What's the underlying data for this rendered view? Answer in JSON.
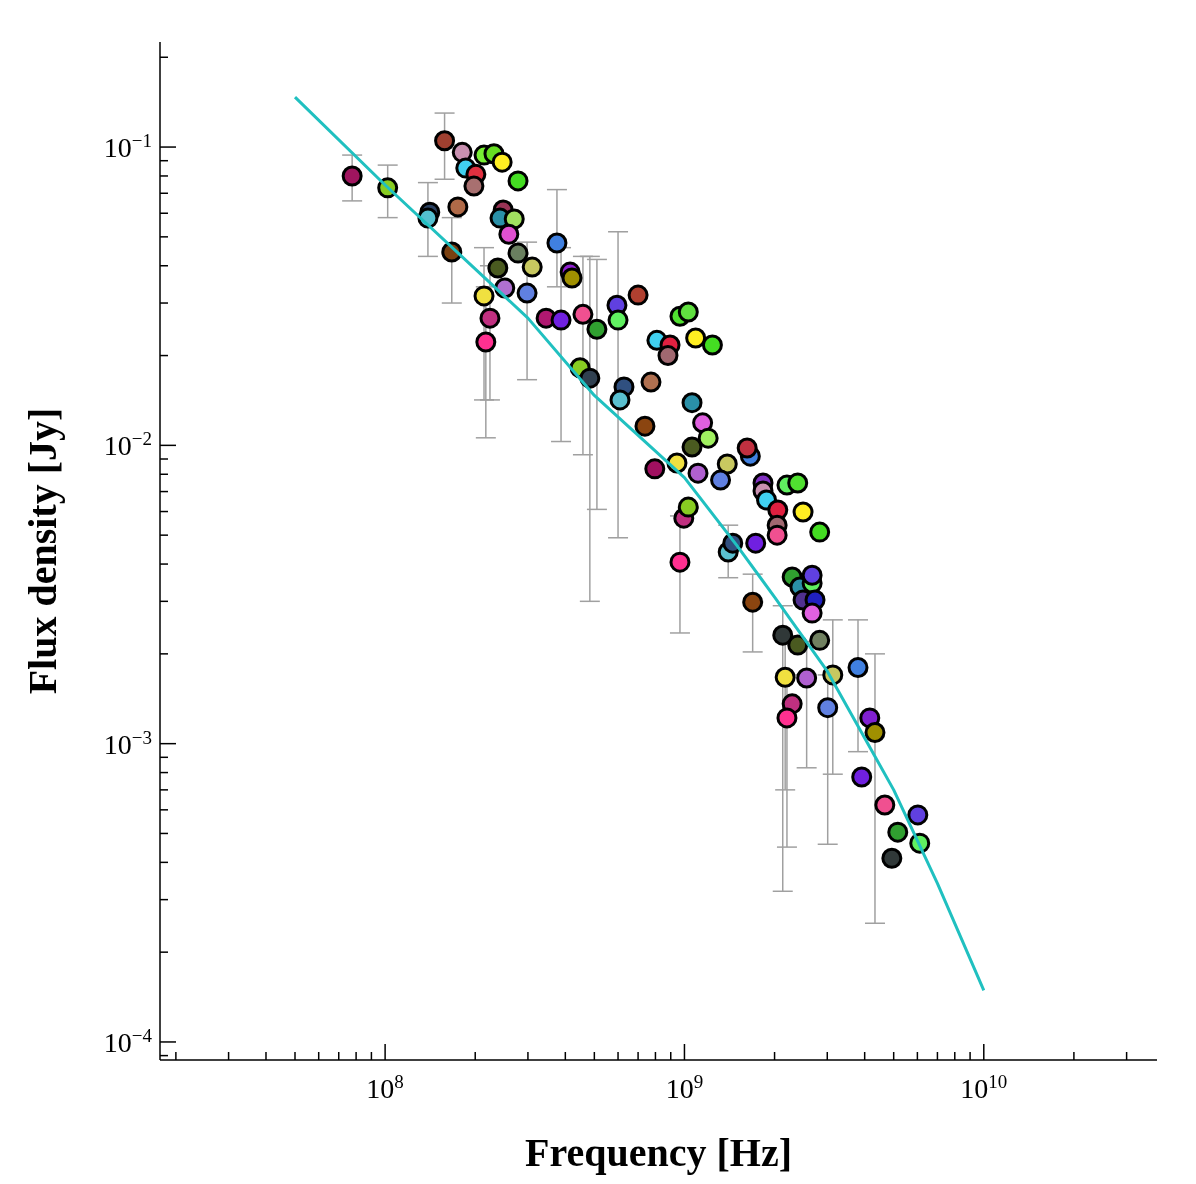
{
  "chart_data": {
    "type": "scatter",
    "xlabel": "Frequency [Hz]",
    "ylabel": "Flux density [Jy]",
    "log": "xy",
    "grid": false,
    "xlim": [
      17700000.0,
      37900000000.0
    ],
    "ylim": [
      8.7e-05,
      0.225
    ],
    "xticks": [
      {
        "value": 20000000.0,
        "label": null
      },
      {
        "value": 30000000.0,
        "label": null
      },
      {
        "value": 40000000.0,
        "label": null
      },
      {
        "value": 50000000.0,
        "label": null
      },
      {
        "value": 60000000.0,
        "label": null
      },
      {
        "value": 70000000.0,
        "label": null
      },
      {
        "value": 80000000.0,
        "label": null
      },
      {
        "value": 90000000.0,
        "label": null
      },
      {
        "value": 100000000.0,
        "label": "10$^{8}$"
      },
      {
        "value": 200000000.0,
        "label": null
      },
      {
        "value": 300000000.0,
        "label": null
      },
      {
        "value": 400000000.0,
        "label": null
      },
      {
        "value": 500000000.0,
        "label": null
      },
      {
        "value": 600000000.0,
        "label": null
      },
      {
        "value": 700000000.0,
        "label": null
      },
      {
        "value": 800000000.0,
        "label": null
      },
      {
        "value": 900000000.0,
        "label": null
      },
      {
        "value": 1000000000.0,
        "label": "10$^{9}$"
      },
      {
        "value": 2000000000.0,
        "label": null
      },
      {
        "value": 3000000000.0,
        "label": null
      },
      {
        "value": 4000000000.0,
        "label": null
      },
      {
        "value": 5000000000.0,
        "label": null
      },
      {
        "value": 6000000000.0,
        "label": null
      },
      {
        "value": 7000000000.0,
        "label": null
      },
      {
        "value": 8000000000.0,
        "label": null
      },
      {
        "value": 9000000000.0,
        "label": null
      },
      {
        "value": 10000000000.0,
        "label": "10$^{10}$"
      },
      {
        "value": 20000000000.0,
        "label": null
      },
      {
        "value": 30000000000.0,
        "label": null
      }
    ],
    "yticks": [
      {
        "value": 9e-05,
        "label": null
      },
      {
        "value": 0.0001,
        "label": "10$^{−4}$"
      },
      {
        "value": 0.0002,
        "label": null
      },
      {
        "value": 0.0003,
        "label": null
      },
      {
        "value": 0.0004,
        "label": null
      },
      {
        "value": 0.0005,
        "label": null
      },
      {
        "value": 0.0006,
        "label": null
      },
      {
        "value": 0.0007,
        "label": null
      },
      {
        "value": 0.0008,
        "label": null
      },
      {
        "value": 0.0009,
        "label": null
      },
      {
        "value": 0.001,
        "label": "10$^{−3}$"
      },
      {
        "value": 0.002,
        "label": null
      },
      {
        "value": 0.003,
        "label": null
      },
      {
        "value": 0.004,
        "label": null
      },
      {
        "value": 0.005,
        "label": null
      },
      {
        "value": 0.006,
        "label": null
      },
      {
        "value": 0.007,
        "label": null
      },
      {
        "value": 0.008,
        "label": null
      },
      {
        "value": 0.009,
        "label": null
      },
      {
        "value": 0.01,
        "label": "10$^{−2}$"
      },
      {
        "value": 0.02,
        "label": null
      },
      {
        "value": 0.03,
        "label": null
      },
      {
        "value": 0.04,
        "label": null
      },
      {
        "value": 0.05,
        "label": null
      },
      {
        "value": 0.06,
        "label": null
      },
      {
        "value": 0.07,
        "label": null
      },
      {
        "value": 0.08,
        "label": null
      },
      {
        "value": 0.09,
        "label": null
      },
      {
        "value": 0.1,
        "label": "10$^{−1}$"
      },
      {
        "value": 0.2,
        "label": null
      }
    ],
    "series": [
      {
        "marker": "circle",
        "x": [
          77600000.0,
          102000000.0,
          141000000.0,
          139000000.0,
          158000000.0,
          175000000.0,
          167000000.0,
          181000000.0,
          186000000.0,
          201000000.0,
          198000000.0,
          214000000.0,
          231000000.0,
          246000000.0,
          278000000.0,
          248000000.0,
          242000000.0,
          270000000.0,
          259000000.0,
          278000000.0,
          238000000.0,
          310000000.0,
          251000000.0,
          298000000.0,
          214000000.0,
          224000000.0,
          217000000.0,
          375000000.0,
          415000000.0,
          421000000.0,
          345000000.0,
          387000000.0,
          458000000.0,
          510000000.0,
          595000000.0,
          600000000.0,
          700000000.0,
          448000000.0,
          483000000.0,
          628000000.0,
          609000000.0,
          773000000.0,
          738000000.0,
          796000000.0,
          809000000.0,
          895000000.0,
          881000000.0,
          966000000.0,
          1030000000.0,
          1090000000.0,
          1240000000.0,
          944000000.0,
          1060000000.0,
          1060000000.0,
          1150000000.0,
          1200000000.0,
          1110000000.0,
          1390000000.0,
          1320000000.0,
          1660000000.0,
          1620000000.0,
          1400000000.0,
          1450000000.0,
          1730000000.0,
          1690000000.0,
          2200000000.0,
          2390000000.0,
          1830000000.0,
          1830000000.0,
          1880000000.0,
          2050000000.0,
          2040000000.0,
          2040000000.0,
          2490000000.0,
          2830000000.0,
          995000000.0,
          1030000000.0,
          966000000.0,
          2290000000.0,
          2430000000.0,
          2670000000.0,
          2670000000.0,
          2490000000.0,
          2730000000.0,
          2670000000.0,
          2130000000.0,
          2390000000.0,
          2830000000.0,
          2170000000.0,
          2560000000.0,
          3130000000.0,
          2290000000.0,
          2200000000.0,
          3010000000.0,
          3800000000.0,
          4160000000.0,
          4330000000.0,
          3910000000.0,
          4670000000.0,
          6020000000.0,
          5160000000.0,
          6110000000.0,
          4930000000.0
        ],
        "values": [
          0.08,
          0.073,
          0.0605,
          0.0578,
          0.105,
          0.063,
          0.0445,
          0.096,
          0.085,
          0.081,
          0.074,
          0.094,
          0.095,
          0.089,
          0.077,
          0.0615,
          0.0578,
          0.0574,
          0.051,
          0.0441,
          0.0393,
          0.0396,
          0.0337,
          0.0324,
          0.0317,
          0.0267,
          0.0222,
          0.0477,
          0.0381,
          0.0364,
          0.0267,
          0.0263,
          0.0275,
          0.0245,
          0.0295,
          0.0263,
          0.0319,
          0.0182,
          0.0168,
          0.0157,
          0.0142,
          0.0163,
          0.0116,
          0.00834,
          0.0225,
          0.0217,
          0.02,
          0.0271,
          0.028,
          0.0229,
          0.0217,
          0.00873,
          0.00987,
          0.0139,
          0.0119,
          0.01057,
          0.00807,
          0.00866,
          0.00765,
          0.0092,
          0.0098,
          0.00439,
          0.0047,
          0.0047,
          0.00298,
          0.00736,
          0.00748,
          0.00748,
          0.00703,
          0.00656,
          0.00607,
          0.0054,
          0.005,
          0.00598,
          0.00512,
          0.0057,
          0.00621,
          0.00406,
          0.00362,
          0.00335,
          0.00345,
          0.00367,
          0.00303,
          0.00303,
          0.00274,
          0.00231,
          0.00214,
          0.00222,
          0.00167,
          0.00166,
          0.0017,
          0.00136,
          0.00122,
          0.00132,
          0.0018,
          0.00122,
          0.00109,
          0.000773,
          0.000623,
          0.000577,
          0.000505,
          0.000464,
          0.000413
        ],
        "colors": [
          "#a0155f",
          "#88cc22",
          "#2a4060",
          "#55c0d0",
          "#a04030",
          "#b06a48",
          "#7a4010",
          "#c890b0",
          "#40d0f0",
          "#e03040",
          "#a87070",
          "#77ee33",
          "#66dd22",
          "#ffee22",
          "#44dd22",
          "#993355",
          "#2a90a8",
          "#a0e060",
          "#e050d0",
          "#6a8060",
          "#4a5a20",
          "#c8c860",
          "#b070d0",
          "#6080e0",
          "#f0e040",
          "#c03080",
          "#ff3090",
          "#4080e0",
          "#9020d0",
          "#a09000",
          "#b01870",
          "#7020e0",
          "#f05090",
          "#30a030",
          "#6040e0",
          "#60f060",
          "#b04030",
          "#88cc22",
          "#304050",
          "#305080",
          "#5ac0d0",
          "#b07050",
          "#8b4510",
          "#a01060",
          "#40d0f0",
          "#e02040",
          "#a06870",
          "#50e030",
          "#60e040",
          "#ffee22",
          "#44dd22",
          "#f0e040",
          "#4a5a20",
          "#2a90a8",
          "#e060e0",
          "#a0f060",
          "#b060d0",
          "#c8c860",
          "#6080e0",
          "#4080e0",
          "#c03040",
          "#5ac0d0",
          "#305080",
          "#7020e0",
          "#8b4510",
          "#60f060",
          "#50e030",
          "#8030c0",
          "#c890b0",
          "#40d0f0",
          "#e02040",
          "#a06870",
          "#f05090",
          "#ffee22",
          "#44dd22",
          "#c03080",
          "#88cc22",
          "#ff3090",
          "#30a030",
          "#2a90a8",
          "#60f060",
          "#6040e0",
          "#503090",
          "#2020c0",
          "#e060e0",
          "#303838",
          "#4a5a20",
          "#708060",
          "#f0e040",
          "#b060d0",
          "#c8c860",
          "#c03080",
          "#ff3090",
          "#6080e0",
          "#4080e0",
          "#8020d0",
          "#a09000",
          "#7020e0",
          "#f05090",
          "#6040e0",
          "#30a030",
          "#60f060",
          "#303838"
        ],
        "errors": [
          [
            0.066,
            0.094
          ],
          [
            0.058,
            0.087
          ],
          null,
          [
            0.043,
            0.076
          ],
          [
            0.078,
            0.13
          ],
          null,
          [
            0.03,
            0.058
          ],
          null,
          null,
          null,
          null,
          null,
          null,
          null,
          null,
          null,
          null,
          null,
          null,
          null,
          null,
          null,
          null,
          [
            0.0166,
            0.048
          ],
          [
            0.0142,
            0.046
          ],
          [
            0.0142,
            0.04
          ],
          [
            0.0106,
            0.034
          ],
          [
            0.034,
            0.072
          ],
          null,
          null,
          null,
          [
            0.0103,
            0.046
          ],
          [
            0.0093,
            0.043
          ],
          [
            0.0061,
            0.042
          ],
          null,
          [
            0.0049,
            0.052
          ],
          null,
          null,
          [
            0.003,
            0.043
          ],
          null,
          null,
          null,
          null,
          null,
          null,
          null,
          null,
          null,
          null,
          null,
          null,
          null,
          null,
          null,
          null,
          null,
          null,
          null,
          null,
          null,
          null,
          [
            0.0036,
            0.0054
          ],
          null,
          null,
          [
            0.00203,
            0.0037
          ],
          null,
          null,
          null,
          null,
          null,
          null,
          null,
          null,
          null,
          null,
          null,
          null,
          [
            0.00235,
            0.0058
          ],
          null,
          null,
          null,
          null,
          null,
          null,
          null,
          [
            0.00032,
            0.0029
          ],
          null,
          null,
          [
            0.0007,
            0.0022
          ],
          [
            0.00083,
            0.0022
          ],
          [
            0.00079,
            0.0026
          ],
          null,
          [
            0.00045,
            0.0017
          ],
          [
            0.00046,
            0.0017
          ],
          [
            0.00094,
            0.0026
          ],
          null,
          [
            0.00025,
            0.002
          ],
          null,
          null,
          null,
          null,
          null,
          null
        ]
      },
      {
        "type": "line",
        "marker": "none",
        "color": "#20c0c0",
        "x": [
          50000000.0,
          100000000.0,
          300000000.0,
          500000000.0,
          1000000000.0,
          1500000000.0,
          2000000000.0,
          3000000000.0,
          5000000000.0,
          7000000000.0,
          10000000000.0
        ],
        "values": [
          0.147,
          0.0746,
          0.0267,
          0.0147,
          0.0078,
          0.0046,
          0.0031,
          0.00175,
          0.0007,
          0.00034,
          0.000149
        ]
      }
    ]
  }
}
